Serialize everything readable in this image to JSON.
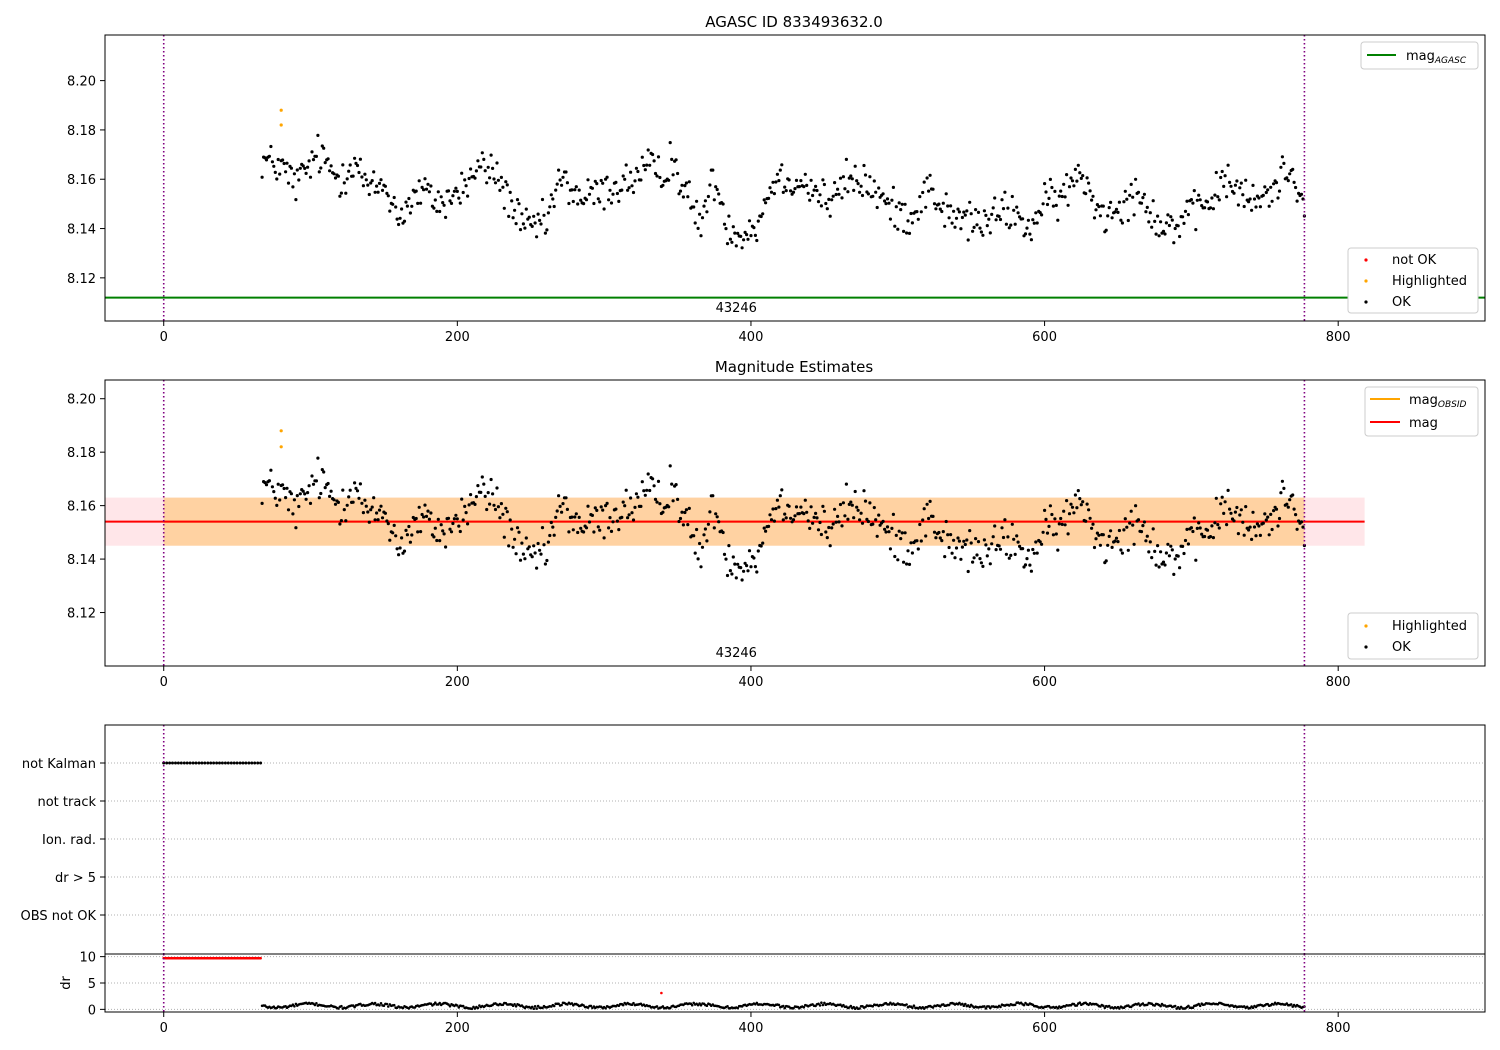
{
  "chart_data": [
    {
      "type": "scatter",
      "title": "AGASC ID 833493632.0",
      "xlim": [
        -40,
        900
      ],
      "ylim": [
        8.1025,
        8.2185
      ],
      "xticks": [
        0,
        200,
        400,
        600,
        800
      ],
      "yticks": [
        8.12,
        8.14,
        8.16,
        8.18,
        8.2
      ],
      "obsid_label": "43246",
      "obsid_label_x": 390,
      "vlines": [
        0,
        777
      ],
      "grid": false,
      "lines": [
        {
          "name": "mag_AGASC",
          "label_main": "mag",
          "label_sub": "AGASC",
          "y": 8.112,
          "color": "#008000"
        }
      ],
      "legend_lines_position": "top-right",
      "legend_points_position": "bottom-right",
      "legend_points": [
        {
          "name": "not OK",
          "color": "#ff0000"
        },
        {
          "name": "Highlighted",
          "color": "#ffa500"
        },
        {
          "name": "OK",
          "color": "#000000"
        }
      ],
      "series": [
        {
          "name": "OK",
          "color": "#000000",
          "x_start": 67,
          "x_end": 777,
          "step": 1,
          "y_keypoints": [
            [
              67,
              8.168
            ],
            [
              80,
              8.165
            ],
            [
              90,
              8.158
            ],
            [
              105,
              8.17
            ],
            [
              120,
              8.16
            ],
            [
              130,
              8.168
            ],
            [
              140,
              8.155
            ],
            [
              150,
              8.158
            ],
            [
              160,
              8.145
            ],
            [
              175,
              8.155
            ],
            [
              190,
              8.15
            ],
            [
              205,
              8.157
            ],
            [
              215,
              8.165
            ],
            [
              225,
              8.163
            ],
            [
              235,
              8.152
            ],
            [
              245,
              8.14
            ],
            [
              260,
              8.142
            ],
            [
              270,
              8.16
            ],
            [
              285,
              8.152
            ],
            [
              300,
              8.155
            ],
            [
              320,
              8.16
            ],
            [
              330,
              8.165
            ],
            [
              340,
              8.16
            ],
            [
              345,
              8.17
            ],
            [
              355,
              8.155
            ],
            [
              365,
              8.142
            ],
            [
              375,
              8.16
            ],
            [
              385,
              8.14
            ],
            [
              395,
              8.138
            ],
            [
              405,
              8.142
            ],
            [
              415,
              8.16
            ],
            [
              430,
              8.16
            ],
            [
              440,
              8.157
            ],
            [
              455,
              8.15
            ],
            [
              465,
              8.16
            ],
            [
              480,
              8.158
            ],
            [
              495,
              8.148
            ],
            [
              510,
              8.145
            ],
            [
              520,
              8.157
            ],
            [
              535,
              8.145
            ],
            [
              550,
              8.143
            ],
            [
              560,
              8.142
            ],
            [
              575,
              8.148
            ],
            [
              590,
              8.14
            ],
            [
              600,
              8.15
            ],
            [
              610,
              8.152
            ],
            [
              625,
              8.162
            ],
            [
              640,
              8.145
            ],
            [
              650,
              8.15
            ],
            [
              665,
              8.155
            ],
            [
              680,
              8.14
            ],
            [
              695,
              8.143
            ],
            [
              710,
              8.15
            ],
            [
              725,
              8.16
            ],
            [
              740,
              8.15
            ],
            [
              755,
              8.155
            ],
            [
              765,
              8.165
            ],
            [
              777,
              8.153
            ]
          ],
          "noise": 0.006
        },
        {
          "name": "Highlighted",
          "color": "#ffa500",
          "x": [
            80,
            80
          ],
          "y": [
            8.182,
            8.188
          ]
        },
        {
          "name": "not OK",
          "color": "#ff0000",
          "x": [],
          "y": []
        }
      ]
    },
    {
      "type": "scatter",
      "title": "Magnitude Estimates",
      "xlim": [
        -40,
        900
      ],
      "ylim": [
        8.1,
        8.207
      ],
      "xticks": [
        0,
        200,
        400,
        600,
        800
      ],
      "yticks": [
        8.12,
        8.14,
        8.16,
        8.18,
        8.2
      ],
      "obsid_label": "43246",
      "obsid_label_x": 390,
      "vlines": [
        0,
        777
      ],
      "grid": false,
      "lines": [
        {
          "name": "mag_OBSID",
          "label_main": "mag",
          "label_sub": "OBSID",
          "y": 8.154,
          "color": "#ffa500",
          "band": [
            8.145,
            8.163
          ],
          "band_color": "#ffa500",
          "x_range": [
            0,
            777
          ]
        },
        {
          "name": "mag",
          "label_main": "mag",
          "label_sub": "",
          "y": 8.154,
          "color": "#ff0000",
          "band": [
            8.145,
            8.163
          ],
          "band_color": "#ffb6c1",
          "x_range": [
            -40,
            818
          ]
        }
      ],
      "legend_lines_position": "top-right",
      "legend_points_position": "bottom-right",
      "legend_points": [
        {
          "name": "Highlighted",
          "color": "#ffa500"
        },
        {
          "name": "OK",
          "color": "#000000"
        }
      ],
      "series": [
        {
          "name": "OK",
          "color": "#000000",
          "same_as_chart": 0
        },
        {
          "name": "Highlighted",
          "color": "#ffa500",
          "x": [
            80,
            80
          ],
          "y": [
            8.182,
            8.188
          ]
        }
      ]
    },
    {
      "type": "scatter",
      "title": "",
      "xlim": [
        -40,
        900
      ],
      "xticks": [
        0,
        200,
        400,
        600,
        800
      ],
      "vlines": [
        0,
        777
      ],
      "flag_categories": [
        "not Kalman",
        "not track",
        "Ion. rad.",
        "dr > 5",
        "OBS not OK"
      ],
      "flags": [
        {
          "category": "not Kalman",
          "x_start": 0,
          "x_end": 66,
          "step": 2,
          "color": "#000000"
        }
      ],
      "dr_axis": {
        "ylabel": "dr",
        "ylim": [
          -0.5,
          10.5
        ],
        "yticks": [
          0,
          5,
          10
        ]
      },
      "dr_series": [
        {
          "name": "not OK",
          "color": "#ff0000",
          "x_start": 0,
          "x_end": 66,
          "step": 1,
          "value": 9.7
        },
        {
          "name": "not OK",
          "color": "#ff0000",
          "x": [
            339
          ],
          "y": [
            3.1
          ]
        },
        {
          "name": "OK",
          "color": "#000000",
          "x_start": 67,
          "x_end": 777,
          "step": 1,
          "base": 0.7,
          "noise": 0.5
        }
      ]
    }
  ]
}
